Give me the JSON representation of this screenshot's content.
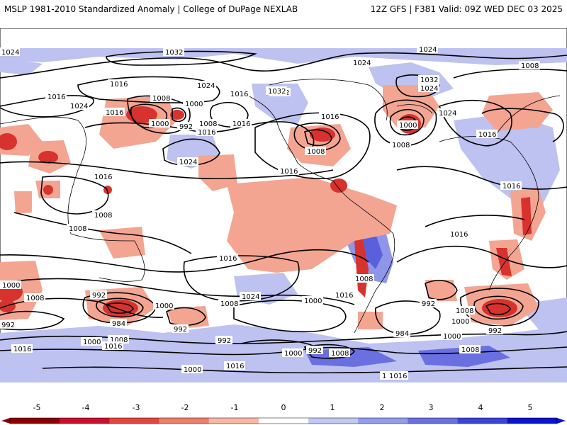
{
  "header": {
    "left_title": "MSLP 1981-2010 Standardized Anomaly | College of DuPage NEXLAB",
    "right_title": "12Z GFS | F381 Valid: 09Z WED DEC 03 2025"
  },
  "colorbar": {
    "ticks": [
      "-5",
      "-4",
      "-3",
      "-2",
      "-1",
      "0",
      "1",
      "2",
      "3",
      "4",
      "5"
    ],
    "colors": [
      "#8b0000",
      "#c8102e",
      "#e0473d",
      "#ee7f6d",
      "#f7b8a6",
      "#ffffff",
      "#c3c8f2",
      "#969cea",
      "#6a70df",
      "#3b44d8",
      "#0a14c8"
    ]
  },
  "isobar_labels": [
    "1024",
    "1032",
    "1024",
    "1024",
    "1032",
    "1024",
    "1008",
    "1016",
    "1032",
    "1024",
    "1016",
    "1016",
    "1008",
    "1000",
    "992",
    "1016",
    "1008",
    "1000",
    "1024",
    "1016",
    "1024",
    "1016",
    "1032",
    "1016",
    "1008",
    "1000",
    "1016",
    "1024",
    "1008",
    "1008",
    "1008",
    "1016",
    "1016",
    "1016",
    "1024",
    "1016",
    "1000",
    "992",
    "1008",
    "1000",
    "1008",
    "992",
    "984",
    "992",
    "1000",
    "1000",
    "1008",
    "1016",
    "1000",
    "1008",
    "992",
    "992",
    "984",
    "1000",
    "1000",
    "992",
    "992",
    "1008",
    "1016",
    "1000",
    "1016",
    "1016",
    "1008",
    "1016",
    "1016",
    "1008",
    "1016"
  ],
  "colors": {
    "negative_anomaly": "#f3a592",
    "strong_negative_anomaly": "#d7322d",
    "positive_anomaly": "#bdc2f0",
    "strong_positive_anomaly": "#5a60dc",
    "isobar": "#000000",
    "coastline": "#000000"
  }
}
